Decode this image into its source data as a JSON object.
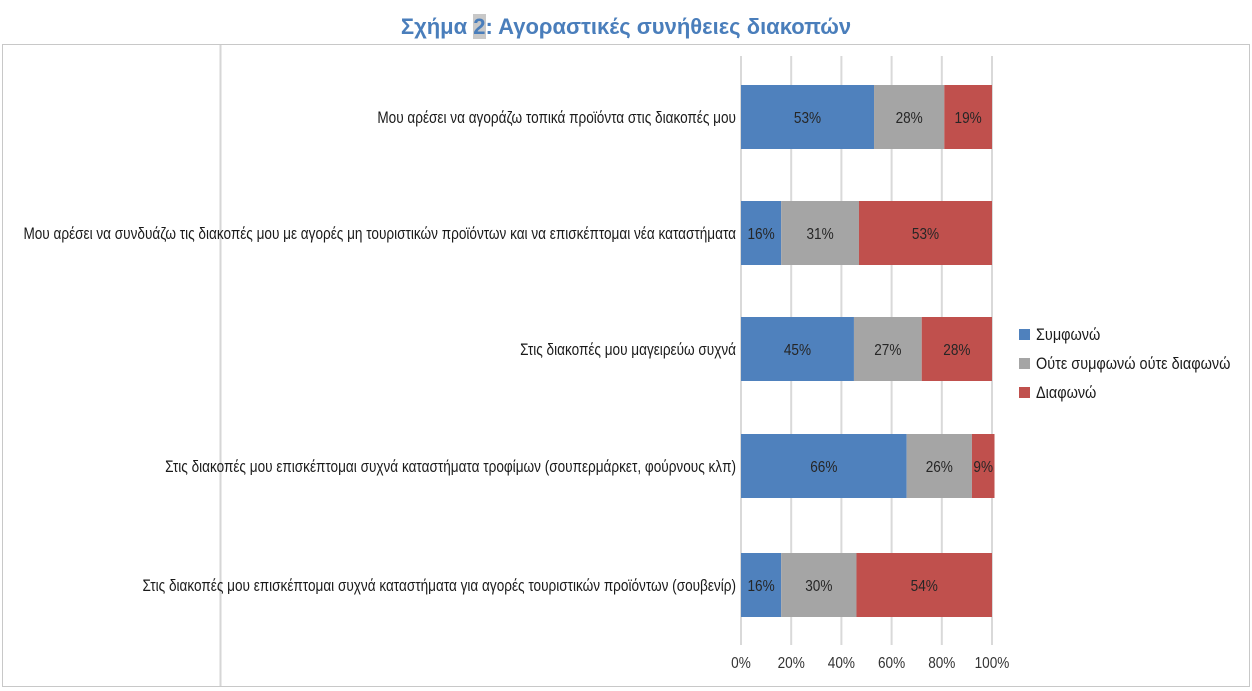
{
  "chart_data": {
    "type": "bar",
    "orientation": "horizontal",
    "stacked": "100%",
    "title_prefix": "Σχήμα ",
    "title_number": "2",
    "title_rest": ": Αγοραστικές συνήθειες διακοπών",
    "categories": [
      "Μου αρέσει να αγοράζω τοπικά προϊόντα στις διακοπές μου",
      "Μου αρέσει να συνδυάζω τις διακοπές μου με αγορές μη τουριστικών προϊόντων και να επισκέπτομαι νέα καταστήματα",
      "Στις διακοπές μου μαγειρεύω συχνά",
      "Στις διακοπές μου επισκέπτομαι συχνά καταστήματα τροφίμων (σουπερμάρκετ, φούρνους κλπ)",
      "Στις διακοπές μου επισκέπτομαι συχνά καταστήματα για αγορές τουριστικών  προϊόντων (σουβενίρ)"
    ],
    "series": [
      {
        "name": "Συμφωνώ",
        "color": "#4f81bd",
        "values": [
          53,
          16,
          45,
          66,
          16
        ]
      },
      {
        "name": "Ούτε συμφωνώ ούτε διαφωνώ",
        "color": "#a5a5a5",
        "values": [
          28,
          31,
          27,
          26,
          30
        ]
      },
      {
        "name": "Διαφωνώ",
        "color": "#c0504d",
        "values": [
          19,
          53,
          28,
          9,
          54
        ]
      }
    ],
    "xlim": [
      0,
      100
    ],
    "xticks": [
      "0%",
      "20%",
      "40%",
      "60%",
      "80%",
      "100%"
    ],
    "grid": true,
    "legend": "right"
  }
}
